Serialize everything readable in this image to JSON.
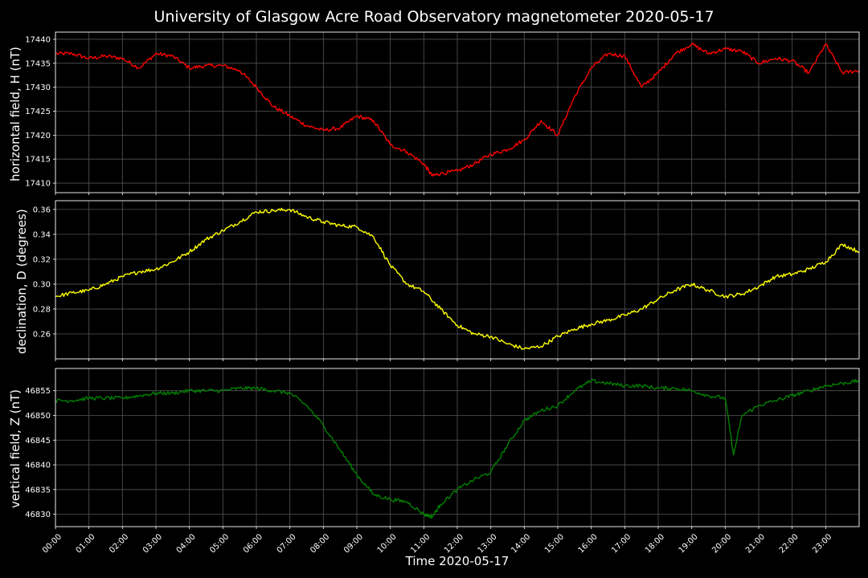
{
  "figure_title": "University of Glasgow Acre Road Observatory magnetometer 2020-05-17",
  "chart_data": [
    {
      "type": "line",
      "ylabel": "horizontal field, H (nT)",
      "ylim": [
        17408,
        17441.5
      ],
      "yticks": [
        17410,
        17415,
        17420,
        17425,
        17430,
        17435,
        17440
      ],
      "color": "#ff0000",
      "x_hours": [
        0,
        0.5,
        1,
        1.5,
        2,
        2.5,
        3,
        3.5,
        4,
        4.5,
        5,
        5.5,
        6,
        6.5,
        7,
        7.5,
        8,
        8.5,
        9,
        9.5,
        10,
        10.5,
        11,
        11.25,
        11.5,
        12,
        12.5,
        13,
        13.5,
        14,
        14.5,
        15,
        15.5,
        16,
        16.5,
        17,
        17.5,
        18,
        18.5,
        19,
        19.5,
        20,
        20.5,
        21,
        21.5,
        22,
        22.5,
        23,
        23.5,
        24
      ],
      "values": [
        17437,
        17437,
        17436,
        17436.5,
        17436,
        17434,
        17437,
        17436.5,
        17434,
        17434.5,
        17434.5,
        17433.5,
        17430,
        17426,
        17424,
        17422,
        17421,
        17421.5,
        17424,
        17423,
        17418,
        17416.5,
        17414,
        17411.5,
        17412,
        17412.5,
        17414,
        17416,
        17417,
        17419,
        17423,
        17420,
        17428,
        17434,
        17437,
        17436.5,
        17430,
        17433,
        17437,
        17439,
        17437,
        17438,
        17437.5,
        17435,
        17436,
        17435.5,
        17433,
        17439,
        17433,
        17433.5
      ]
    },
    {
      "type": "line",
      "ylabel": "declination, D (degrees)",
      "ylim": [
        0.24,
        0.367
      ],
      "yticks": [
        "0.26",
        "0.28",
        "0.30",
        "0.32",
        "0.34",
        "0.36"
      ],
      "ytick_values": [
        0.26,
        0.28,
        0.3,
        0.32,
        0.34,
        0.36
      ],
      "color": "#ffff00",
      "x_hours": [
        0,
        0.5,
        1,
        1.5,
        2,
        2.5,
        3,
        3.5,
        4,
        4.5,
        5,
        5.5,
        6,
        6.5,
        7,
        7.5,
        8,
        8.5,
        9,
        9.5,
        10,
        10.5,
        11,
        11.5,
        12,
        12.5,
        13,
        13.5,
        14,
        14.5,
        15,
        15.5,
        16,
        16.5,
        17,
        17.5,
        18,
        18.5,
        19,
        19.5,
        20,
        20.5,
        21,
        21.5,
        22,
        22.5,
        23,
        23.5,
        24
      ],
      "values": [
        0.29,
        0.293,
        0.295,
        0.3,
        0.306,
        0.31,
        0.312,
        0.318,
        0.326,
        0.336,
        0.343,
        0.35,
        0.358,
        0.359,
        0.36,
        0.354,
        0.35,
        0.347,
        0.346,
        0.338,
        0.315,
        0.3,
        0.294,
        0.28,
        0.267,
        0.26,
        0.258,
        0.252,
        0.248,
        0.25,
        0.258,
        0.264,
        0.268,
        0.271,
        0.275,
        0.28,
        0.288,
        0.295,
        0.3,
        0.295,
        0.29,
        0.292,
        0.298,
        0.306,
        0.308,
        0.312,
        0.318,
        0.332,
        0.326
      ]
    },
    {
      "type": "line",
      "ylabel": "vertical field, Z (nT)",
      "ylim": [
        46827.5,
        46859.5
      ],
      "yticks": [
        46830,
        46835,
        46840,
        46845,
        46850,
        46855
      ],
      "color": "#008000",
      "x_hours": [
        0,
        0.5,
        1,
        1.5,
        2,
        2.5,
        3,
        3.5,
        4,
        4.5,
        5,
        5.5,
        6,
        6.5,
        7,
        7.5,
        8,
        8.5,
        9,
        9.5,
        10,
        10.5,
        11,
        11.25,
        11.5,
        12,
        12.5,
        13,
        13.5,
        14,
        14.5,
        15,
        15.5,
        16,
        16.5,
        17,
        17.5,
        18,
        18.5,
        19,
        19.5,
        20,
        20.25,
        20.5,
        21,
        21.5,
        22,
        22.5,
        23,
        23.5,
        24
      ],
      "values": [
        46853,
        46853,
        46853.5,
        46853.5,
        46853.5,
        46854,
        46854.5,
        46854.5,
        46855,
        46855,
        46855,
        46855.5,
        46855.5,
        46855,
        46854.5,
        46852,
        46848,
        46843,
        46838,
        46834,
        46833,
        46832.5,
        46830,
        46829.5,
        46832,
        46835,
        46837,
        46838.5,
        46844,
        46849,
        46851,
        46852,
        46855,
        46857,
        46856.5,
        46856,
        46856,
        46855.5,
        46855.5,
        46855,
        46854,
        46853.5,
        46842,
        46850,
        46852,
        46853,
        46854,
        46855,
        46856,
        46856.5,
        46857
      ]
    }
  ],
  "x_ticks": [
    "00:00",
    "01:00",
    "02:00",
    "03:00",
    "04:00",
    "05:00",
    "06:00",
    "07:00",
    "08:00",
    "09:00",
    "10:00",
    "11:00",
    "12:00",
    "13:00",
    "14:00",
    "15:00",
    "16:00",
    "17:00",
    "18:00",
    "19:00",
    "20:00",
    "21:00",
    "22:00",
    "23:00"
  ],
  "x_range_hours": [
    0,
    24
  ],
  "xlabel": "Time 2020-05-17",
  "background_color": "#000000",
  "grid": true
}
